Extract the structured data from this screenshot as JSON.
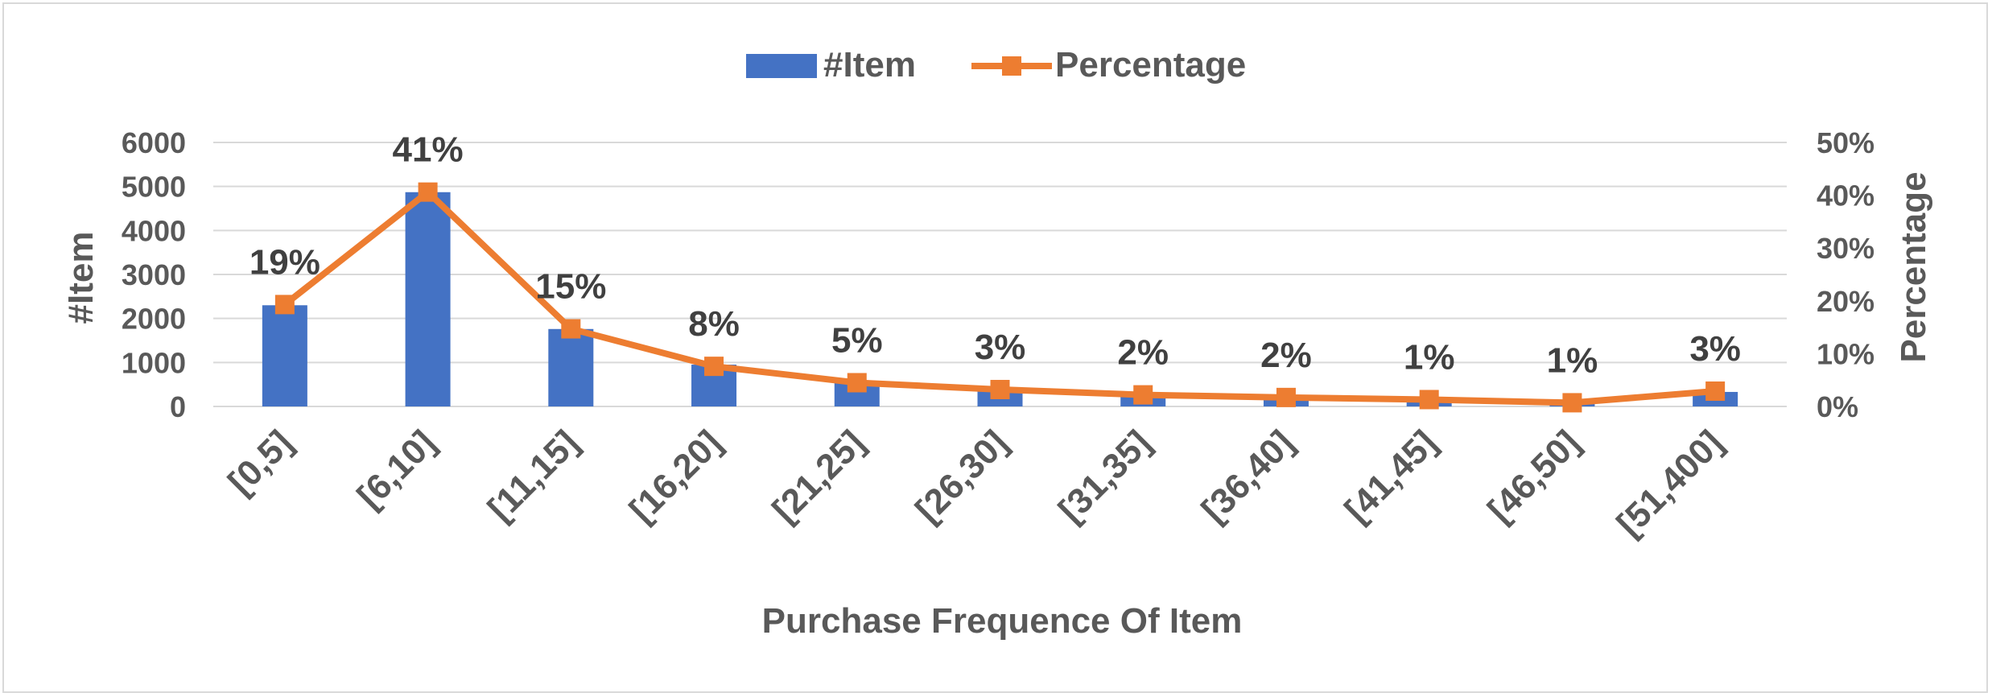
{
  "chart_data": {
    "type": "bar+line",
    "categories": [
      "[0,5]",
      "[6,10]",
      "[11,15]",
      "[16,20]",
      "[21,25]",
      "[26,30]",
      "[31,35]",
      "[36,40]",
      "[41,45]",
      "[46,50]",
      "[51,400]"
    ],
    "series": [
      {
        "name": "#Item",
        "type": "bar",
        "axis": "left",
        "color": "#4472c4",
        "values": [
          2300,
          4870,
          1760,
          950,
          580,
          370,
          260,
          190,
          150,
          90,
          330
        ]
      },
      {
        "name": "Percentage",
        "type": "line",
        "axis": "right",
        "color": "#ed7d31",
        "values": [
          19.3,
          40.6,
          14.7,
          7.6,
          4.5,
          3.2,
          2.2,
          1.7,
          1.3,
          0.7,
          2.9
        ],
        "data_labels": [
          "19%",
          "41%",
          "15%",
          "8%",
          "5%",
          "3%",
          "2%",
          "2%",
          "1%",
          "1%",
          "3%"
        ]
      }
    ],
    "xlabel": "Purchase Frequence Of  Item",
    "ylabel": "#Item",
    "y2label": "Percentage",
    "ylim": [
      0,
      6000
    ],
    "yticks": [
      "0",
      "1000",
      "2000",
      "3000",
      "4000",
      "5000",
      "6000"
    ],
    "y2lim": [
      0,
      50
    ],
    "y2ticks": [
      "0%",
      "10%",
      "20%",
      "30%",
      "40%",
      "50%"
    ],
    "grid": true,
    "legend_position": "top-center"
  }
}
